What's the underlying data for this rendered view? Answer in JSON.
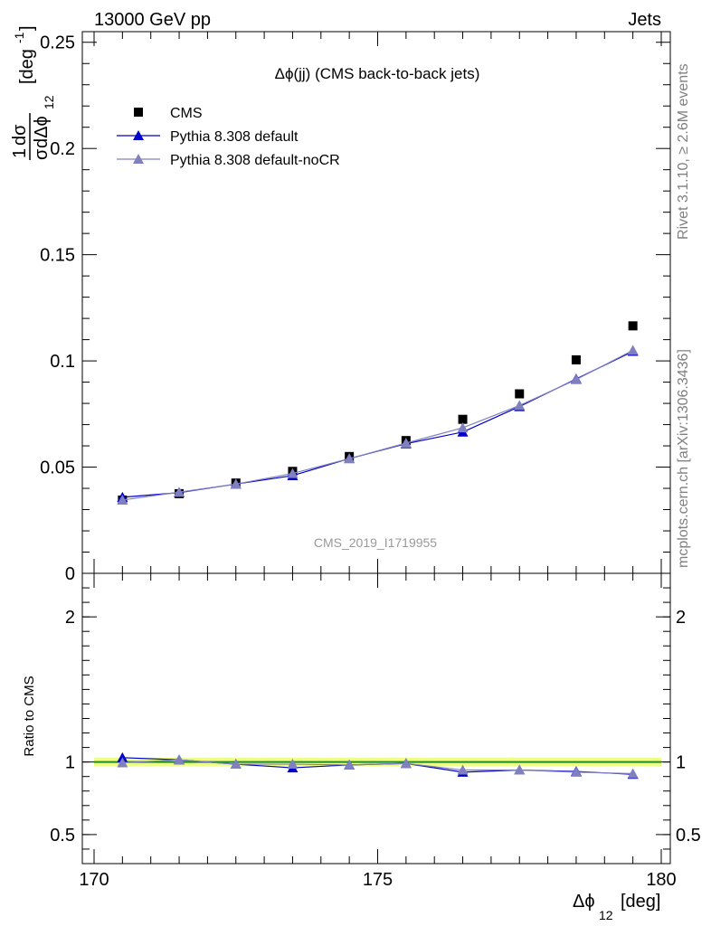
{
  "header": {
    "left": "13000 GeV pp",
    "right": "Jets"
  },
  "side_text": {
    "rivet": "Rivet 3.1.10, ≥ 2.6M events",
    "mcplots": "mcplots.cern.ch [arXiv:1306.3436]"
  },
  "chart_data": [
    {
      "type": "scatter",
      "title": "Δϕ(jj) (CMS back-to-back jets)",
      "watermark": "CMS_2019_I1719955",
      "ylabel": "1/σ dσ/dΔϕ_12 [deg^-1]",
      "ylim": [
        0,
        0.255
      ],
      "xlim": [
        170,
        180
      ],
      "yticks": [
        "0",
        "0.05",
        "0.1",
        "0.15",
        "0.2",
        "0.25"
      ],
      "ytick_values": [
        0,
        0.05,
        0.1,
        0.15,
        0.2,
        0.25
      ],
      "legend_placement": "top-left",
      "series": [
        {
          "name": "CMS",
          "marker": "square",
          "color": "#000000",
          "x": [
            170.5,
            171.5,
            172.5,
            173.5,
            174.5,
            175.5,
            176.5,
            177.5,
            178.5,
            179.5
          ],
          "values": [
            0.0345,
            0.0375,
            0.0425,
            0.048,
            0.055,
            0.0625,
            0.0725,
            0.0845,
            0.1005,
            0.1165
          ]
        },
        {
          "name": "Pythia 8.308 default",
          "marker": "triangle",
          "color": "#0000cc",
          "x": [
            170.5,
            171.5,
            172.5,
            173.5,
            174.5,
            175.5,
            176.5,
            177.5,
            178.5,
            179.5
          ],
          "values": [
            0.0358,
            0.038,
            0.042,
            0.046,
            0.054,
            0.061,
            0.0665,
            0.0785,
            0.0915,
            0.1045
          ]
        },
        {
          "name": "Pythia 8.308 default-noCR",
          "marker": "triangle",
          "color": "#8080c0",
          "x": [
            170.5,
            171.5,
            172.5,
            173.5,
            174.5,
            175.5,
            176.5,
            177.5,
            178.5,
            179.5
          ],
          "values": [
            0.0345,
            0.0382,
            0.042,
            0.047,
            0.054,
            0.0613,
            0.0685,
            0.079,
            0.0912,
            0.105
          ]
        }
      ]
    },
    {
      "type": "line",
      "ylabel": "Ratio to CMS",
      "xlabel": "Δϕ_12 [deg]",
      "ylim": [
        0.3,
        2.3
      ],
      "xlim": [
        170,
        180
      ],
      "yticks": [
        "0.5",
        "1",
        "2"
      ],
      "ytick_values": [
        0.5,
        1,
        2
      ],
      "xticks": [
        "170",
        "175",
        "180"
      ],
      "xtick_values": [
        170,
        175,
        180
      ],
      "reference_band": {
        "center": 1.0,
        "halfwidth": 0.03,
        "color": "#eeff88",
        "line_color": "#228b22"
      },
      "series": [
        {
          "name": "Pythia 8.308 default",
          "color": "#0000cc",
          "x": [
            170.5,
            171.5,
            172.5,
            173.5,
            174.5,
            175.5,
            176.5,
            177.5,
            178.5,
            179.5
          ],
          "values": [
            1.03,
            1.015,
            0.985,
            0.96,
            0.98,
            0.99,
            0.93,
            0.945,
            0.935,
            0.915
          ]
        },
        {
          "name": "Pythia 8.308 default-noCR",
          "color": "#8080c0",
          "x": [
            170.5,
            171.5,
            172.5,
            173.5,
            174.5,
            175.5,
            176.5,
            177.5,
            178.5,
            179.5
          ],
          "values": [
            0.995,
            1.015,
            0.985,
            0.985,
            0.98,
            0.99,
            0.945,
            0.945,
            0.93,
            0.92
          ]
        }
      ]
    }
  ]
}
